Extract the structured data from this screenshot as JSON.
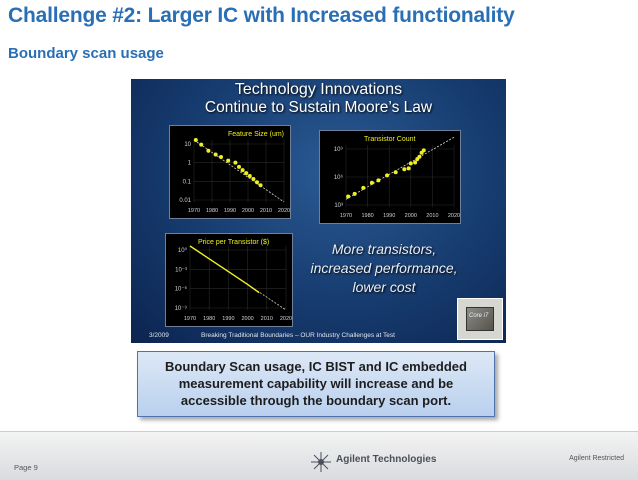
{
  "title": "Challenge #2: Larger IC with Increased functionality",
  "subtitle": "Boundary scan usage",
  "slide": {
    "title_line1": "Technology Innovations",
    "title_line2": "Continue to Sustain Moore’s Law",
    "text_lines": [
      "More transistors,",
      "increased performance,",
      "lower cost"
    ],
    "footer_date": "3/2009",
    "footer_text": "Breaking Traditional Boundaries – OUR Industry Challenges at Test",
    "chip_label": "Core i7"
  },
  "callout": {
    "lines": [
      "Boundary Scan usage, IC BIST and IC embedded",
      "measurement capability will increase and be",
      "accessible through the boundary scan port."
    ]
  },
  "footer": {
    "brand": "Agilent Technologies",
    "restricted": "Agilent Restricted",
    "page": "Page 9"
  },
  "colors": {
    "title": "#2a6fb5",
    "data_points": "#f0f020",
    "trend_line": "#d8d8c0",
    "callout_border": "#4d74ad"
  },
  "chart_data": [
    {
      "type": "scatter",
      "title": "Feature Size (um)",
      "scale": "log",
      "x_ticks": [
        "1970",
        "1980",
        "1990",
        "2000",
        "2010",
        "2020"
      ],
      "y_ticks": [
        "10",
        "1",
        "0.1",
        "0.01"
      ],
      "xlim": [
        1970,
        2020
      ],
      "ylim": [
        0.01,
        10
      ],
      "trend": [
        [
          1970,
          10
        ],
        [
          2020,
          0.01
        ]
      ],
      "x": [
        1971,
        1974,
        1978,
        1982,
        1985,
        1989,
        1993,
        1995,
        1997,
        1999,
        2001,
        2003,
        2005,
        2007
      ],
      "y": [
        10,
        6,
        3,
        2,
        1.5,
        1,
        0.8,
        0.5,
        0.35,
        0.25,
        0.18,
        0.13,
        0.09,
        0.065
      ]
    },
    {
      "type": "scatter",
      "title": "Transistor Count",
      "scale": "log",
      "x_ticks": [
        "1970",
        "1980",
        "1990",
        "2000",
        "2010",
        "2020"
      ],
      "y_ticks": [
        "10⁹",
        "10⁶",
        "10³"
      ],
      "xlim": [
        1970,
        2020
      ],
      "ylim": [
        100,
        10000000000
      ],
      "trend": [
        [
          1970,
          1000
        ],
        [
          2020,
          100000000000
        ]
      ],
      "x": [
        1971,
        1974,
        1978,
        1982,
        1985,
        1989,
        1993,
        1997,
        1999,
        2000,
        2002,
        2003,
        2004,
        2005,
        2006
      ],
      "y": [
        2300,
        5000,
        29000,
        134000,
        275000,
        1200000,
        3100000,
        7500000,
        9500000,
        42000000,
        55000000,
        150000000,
        300000000,
        1000000000,
        2000000000
      ]
    },
    {
      "type": "line",
      "title": "Price per Transistor ($)",
      "scale": "log",
      "x_ticks": [
        "1970",
        "1980",
        "1990",
        "2000",
        "2010",
        "2020"
      ],
      "y_ticks": [
        "10⁰",
        "10⁻³",
        "10⁻⁶",
        "10⁻⁹"
      ],
      "xlim": [
        1970,
        2020
      ],
      "ylim": [
        1e-10,
        1
      ],
      "trend": [
        [
          1970,
          1
        ],
        [
          2020,
          1e-10
        ]
      ],
      "x": [
        1970,
        1980,
        1990,
        2000,
        2006
      ],
      "y": [
        1,
        0.01,
        0.0001,
        1e-06,
        5e-08
      ]
    }
  ]
}
